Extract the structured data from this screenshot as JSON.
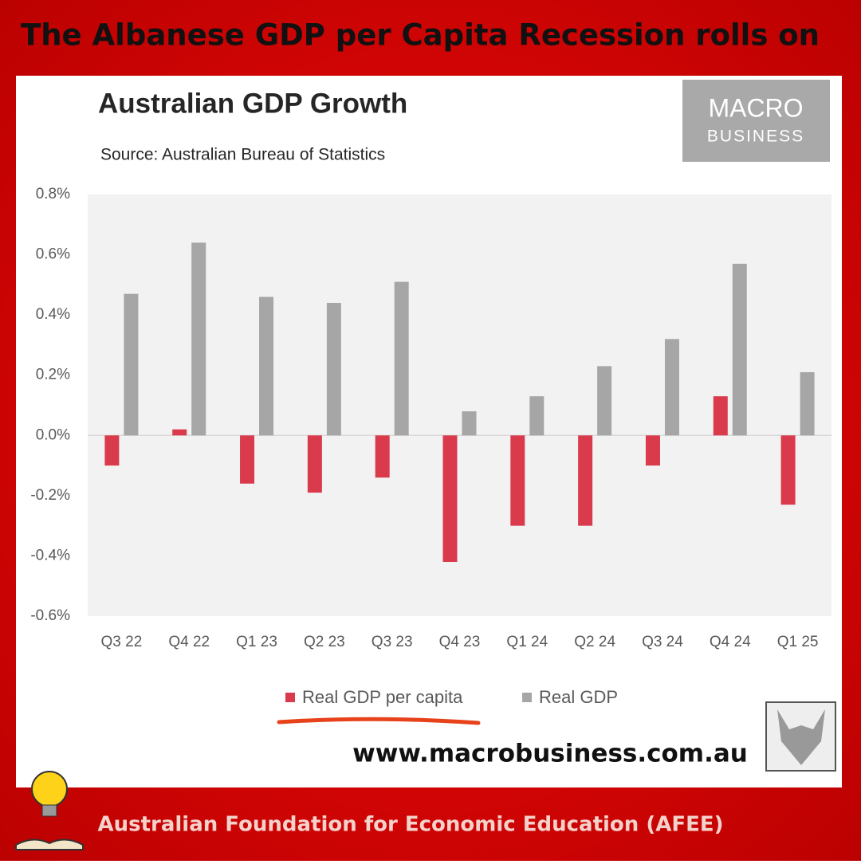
{
  "header": {
    "title": "The Albanese GDP per Capita Recession rolls on"
  },
  "chart_data": {
    "type": "bar",
    "title": "Australian GDP Growth",
    "subtitle": "Source: Australian Bureau of Statistics",
    "categories": [
      "Q3 22",
      "Q4 22",
      "Q1 23",
      "Q2 23",
      "Q3 23",
      "Q4 23",
      "Q1 24",
      "Q2 24",
      "Q3 24",
      "Q4 24",
      "Q1 25"
    ],
    "series": [
      {
        "name": "Real GDP per capita",
        "color": "#d93a4c",
        "values": [
          -0.1,
          0.02,
          -0.16,
          -0.19,
          -0.14,
          -0.42,
          -0.3,
          -0.3,
          -0.1,
          0.13,
          -0.23
        ]
      },
      {
        "name": "Real GDP",
        "color": "#a6a6a6",
        "values": [
          0.47,
          0.64,
          0.46,
          0.44,
          0.51,
          0.08,
          0.13,
          0.23,
          0.32,
          0.57,
          0.21
        ]
      }
    ],
    "ylim": [
      -0.6,
      0.8
    ],
    "yticks": [
      {
        "value": -0.6,
        "label": "-0.6%"
      },
      {
        "value": -0.4,
        "label": "-0.4%"
      },
      {
        "value": -0.2,
        "label": "-0.2%"
      },
      {
        "value": 0,
        "label": "0.0%"
      },
      {
        "value": 0.2,
        "label": "0.2%"
      },
      {
        "value": 0.4,
        "label": "0.4%"
      },
      {
        "value": 0.6,
        "label": "0.6%"
      },
      {
        "value": 0.8,
        "label": "0.8%"
      }
    ],
    "grid": false
  },
  "logo": {
    "line1": "MACRO",
    "line2": "BUSINESS"
  },
  "website": "www.macrobusiness.com.au",
  "footer": "Australian Foundation for Economic Education (AFEE)"
}
